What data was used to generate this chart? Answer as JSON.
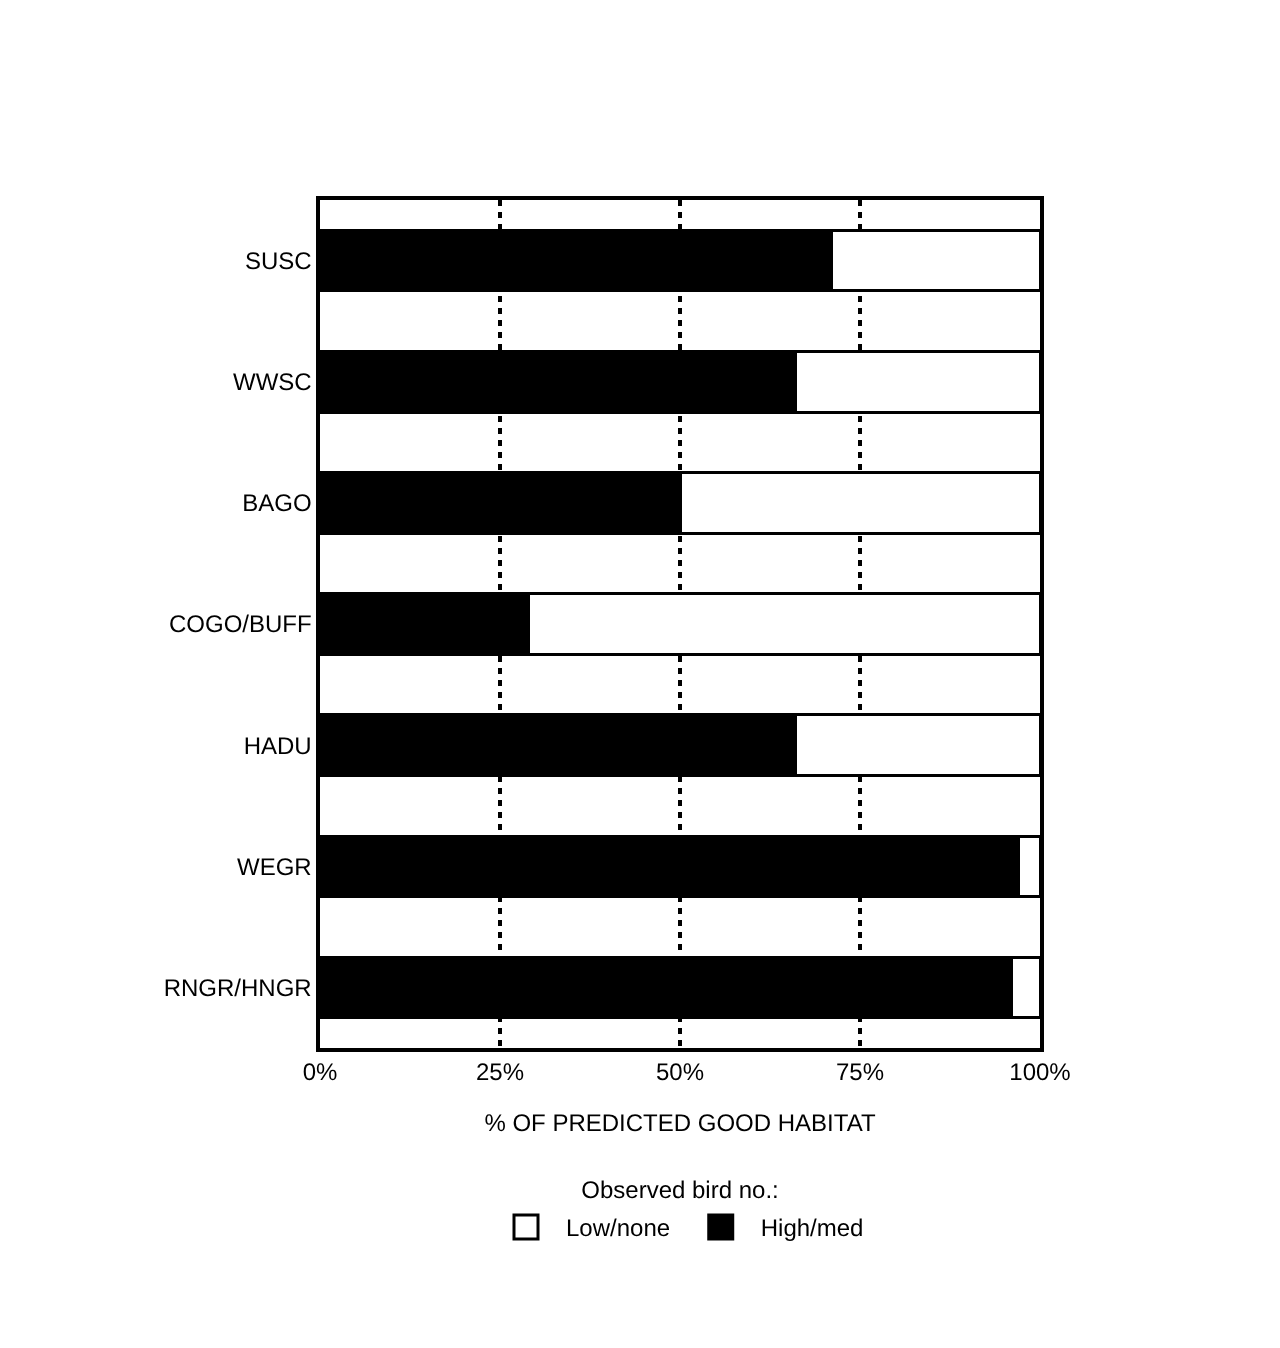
{
  "chart_data": {
    "type": "bar",
    "orientation": "horizontal",
    "stacked": true,
    "categories": [
      "SUSC",
      "WWSC",
      "BAGO",
      "COGO/BUFF",
      "HADU",
      "WEGR",
      "RNGR/HNGR"
    ],
    "series": [
      {
        "name": "High/med",
        "color": "#000000",
        "values": [
          71,
          66,
          50,
          29,
          66,
          97,
          96
        ]
      },
      {
        "name": "Low/none",
        "color": "#ffffff",
        "values": [
          29,
          34,
          50,
          71,
          34,
          3,
          4
        ]
      }
    ],
    "xlim": [
      0,
      100
    ],
    "xticks": [
      {
        "value": 0,
        "label": "0%"
      },
      {
        "value": 25,
        "label": "25%"
      },
      {
        "value": 50,
        "label": "50%"
      },
      {
        "value": 75,
        "label": "75%"
      },
      {
        "value": 100,
        "label": "100%"
      }
    ],
    "xlabel": "% OF PREDICTED GOOD HABITAT",
    "legend_title": "Observed bird no.:",
    "legend": "bottom",
    "grid": "x"
  }
}
